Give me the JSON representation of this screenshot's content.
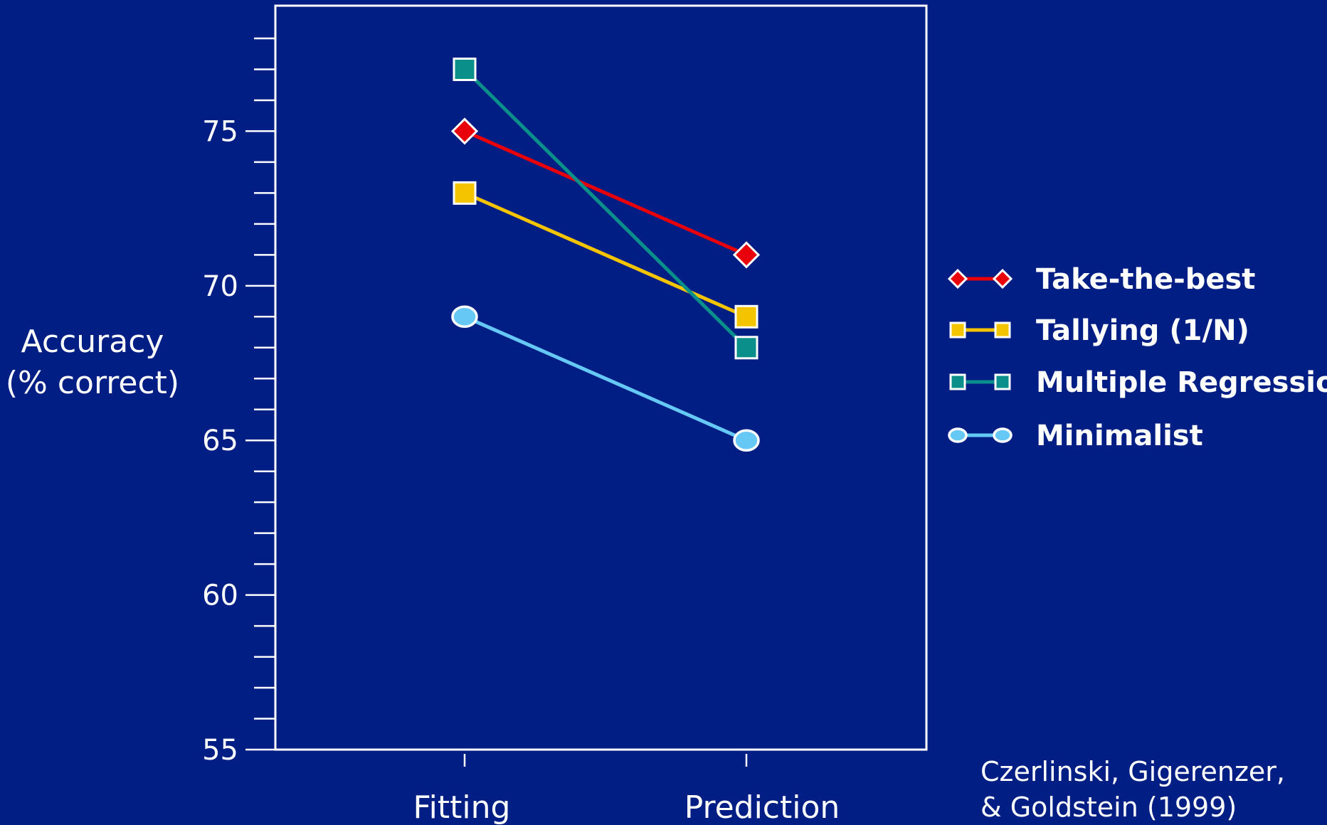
{
  "chart_data": {
    "type": "line",
    "categories": [
      "Fitting",
      "Prediction"
    ],
    "ylabel": [
      "Accuracy",
      "(% correct)"
    ],
    "ylim": [
      55,
      78
    ],
    "yticks": [
      55,
      60,
      65,
      70,
      75
    ],
    "minor_tick_step": 1,
    "grid": false,
    "legend_position": "right",
    "series": [
      {
        "name": "Take-the-best",
        "values": [
          75,
          71
        ],
        "color": "#e8000b",
        "marker": "diamond"
      },
      {
        "name": "Tallying (1/N)",
        "values": [
          73,
          69
        ],
        "color": "#f5c400",
        "marker": "square"
      },
      {
        "name": "Multiple Regression",
        "values": [
          77,
          68
        ],
        "color": "#0a8f8a",
        "marker": "square"
      },
      {
        "name": "Minimalist",
        "values": [
          69,
          65
        ],
        "color": "#66c8f5",
        "marker": "circle"
      }
    ],
    "citation": [
      "Czerlinski, Gigerenzer,",
      "& Goldstein (1999)"
    ]
  }
}
